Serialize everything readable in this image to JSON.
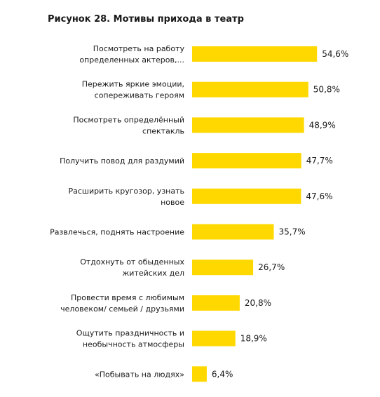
{
  "title": "Рисунок 28. Мотивы прихода в театр",
  "chart_data": {
    "type": "bar",
    "orientation": "horizontal",
    "title": "Рисунок 28. Мотивы прихода в театр",
    "xlabel": "",
    "ylabel": "",
    "unit": "%",
    "grid": false,
    "legend": "none",
    "bar_color": "#FFD800",
    "categories": [
      [
        "Посмотреть на работу",
        "определенных актеров,..."
      ],
      [
        "Пережить яркие эмоции,",
        "сопереживать героям"
      ],
      [
        "Посмотреть определённый",
        "спектакль"
      ],
      [
        "Получить повод для раздумий"
      ],
      [
        "Расширить кругозор, узнать",
        "новое"
      ],
      [
        "Развлечься, поднять настроение"
      ],
      [
        "Отдохнуть от обыденных",
        "житейских дел"
      ],
      [
        "Провести время с любимым",
        "человеком/ семьей / друзьями"
      ],
      [
        "Ощутить праздничность и",
        "необычность атмосферы"
      ],
      [
        "«Побывать на людях»"
      ]
    ],
    "values": [
      54.6,
      50.8,
      48.9,
      47.7,
      47.6,
      35.7,
      26.7,
      20.8,
      18.9,
      6.4
    ],
    "value_labels": [
      "54,6%",
      "50,8%",
      "48,9%",
      "47,7%",
      "47,6%",
      "35,7%",
      "26,7%",
      "20,8%",
      "18,9%",
      "6,4%"
    ],
    "xlim": [
      0,
      60
    ]
  }
}
